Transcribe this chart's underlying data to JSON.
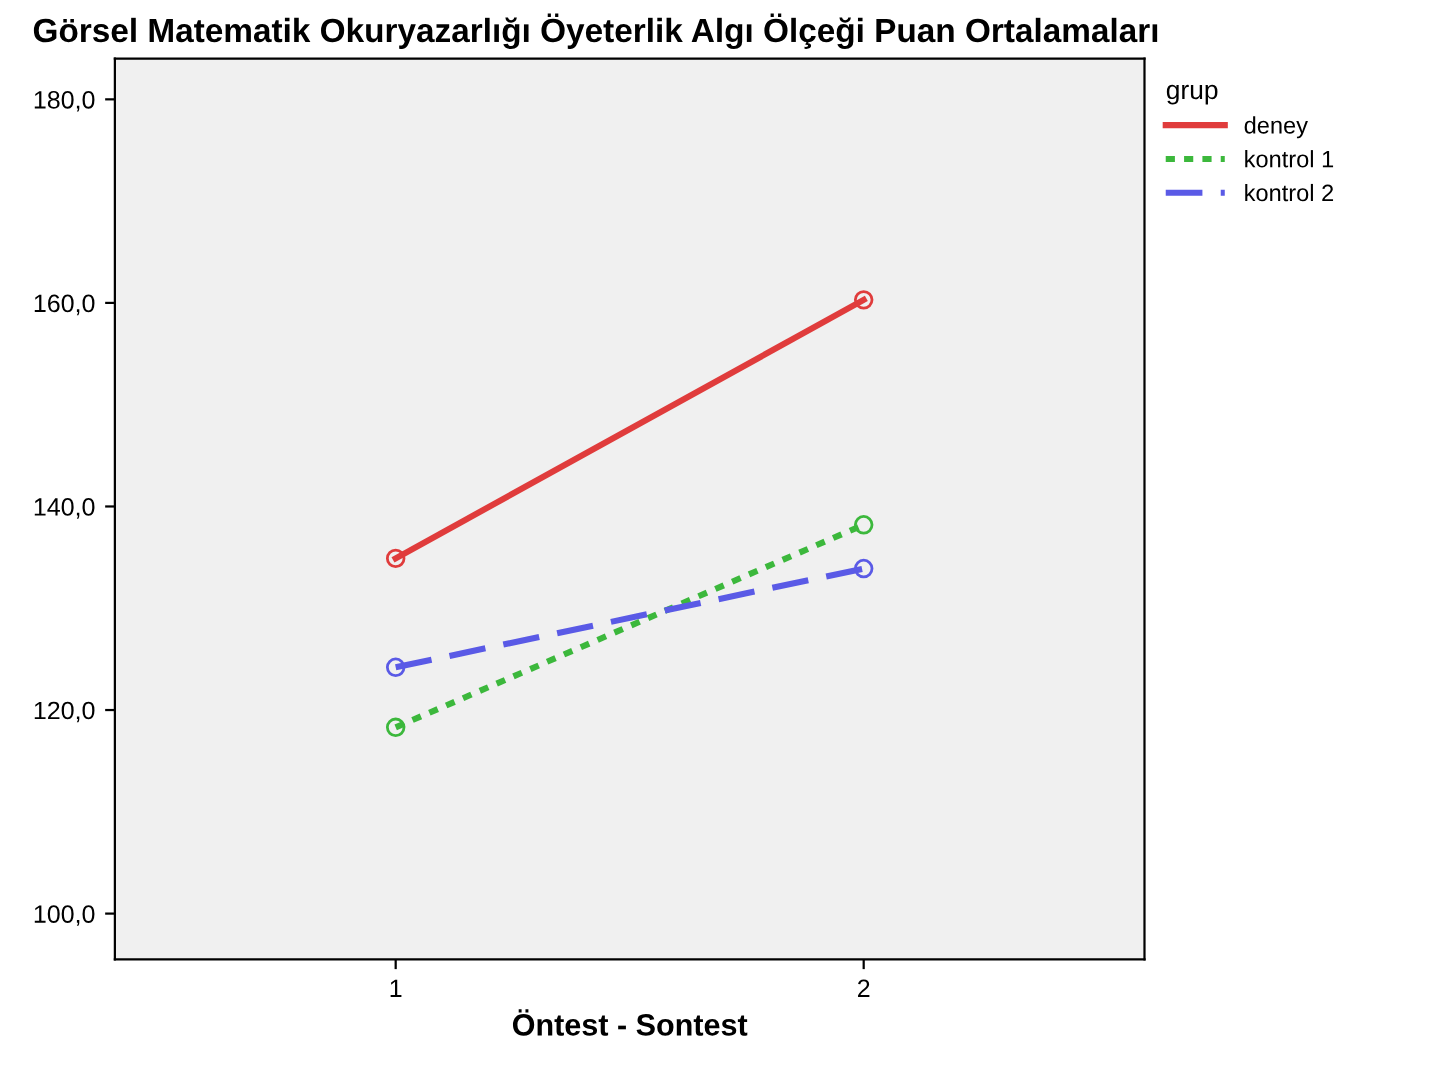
{
  "chart_data": {
    "type": "line",
    "title": "Görsel Matematik Okuryazarlığı Öyeterlik Algı Ölçeği Puan Ortalamaları",
    "xlabel": "Öntest - Sontest",
    "legend_title": "grup",
    "x": [
      1,
      2
    ],
    "series": [
      {
        "name": "deney",
        "color": "#e03c3c",
        "line_style": "solid",
        "values": [
          134.9,
          160.3
        ]
      },
      {
        "name": "kontrol 1",
        "color": "#3cb83c",
        "line_style": "dotted",
        "values": [
          118.3,
          138.2
        ]
      },
      {
        "name": "kontrol 2",
        "color": "#5a5ae6",
        "line_style": "dashed",
        "values": [
          124.2,
          133.9
        ]
      }
    ],
    "xlim": [
      0.4,
      2.6
    ],
    "xticks": [
      1,
      2
    ],
    "ylim": [
      95.5,
      184
    ],
    "yticks": [
      {
        "value": 100,
        "label": "100,0"
      },
      {
        "value": 120,
        "label": "120,0"
      },
      {
        "value": 140,
        "label": "140,0"
      },
      {
        "value": 160,
        "label": "160,0"
      },
      {
        "value": 180,
        "label": "180,0"
      }
    ],
    "marker": "circle",
    "grid": false,
    "legend": "top right"
  }
}
